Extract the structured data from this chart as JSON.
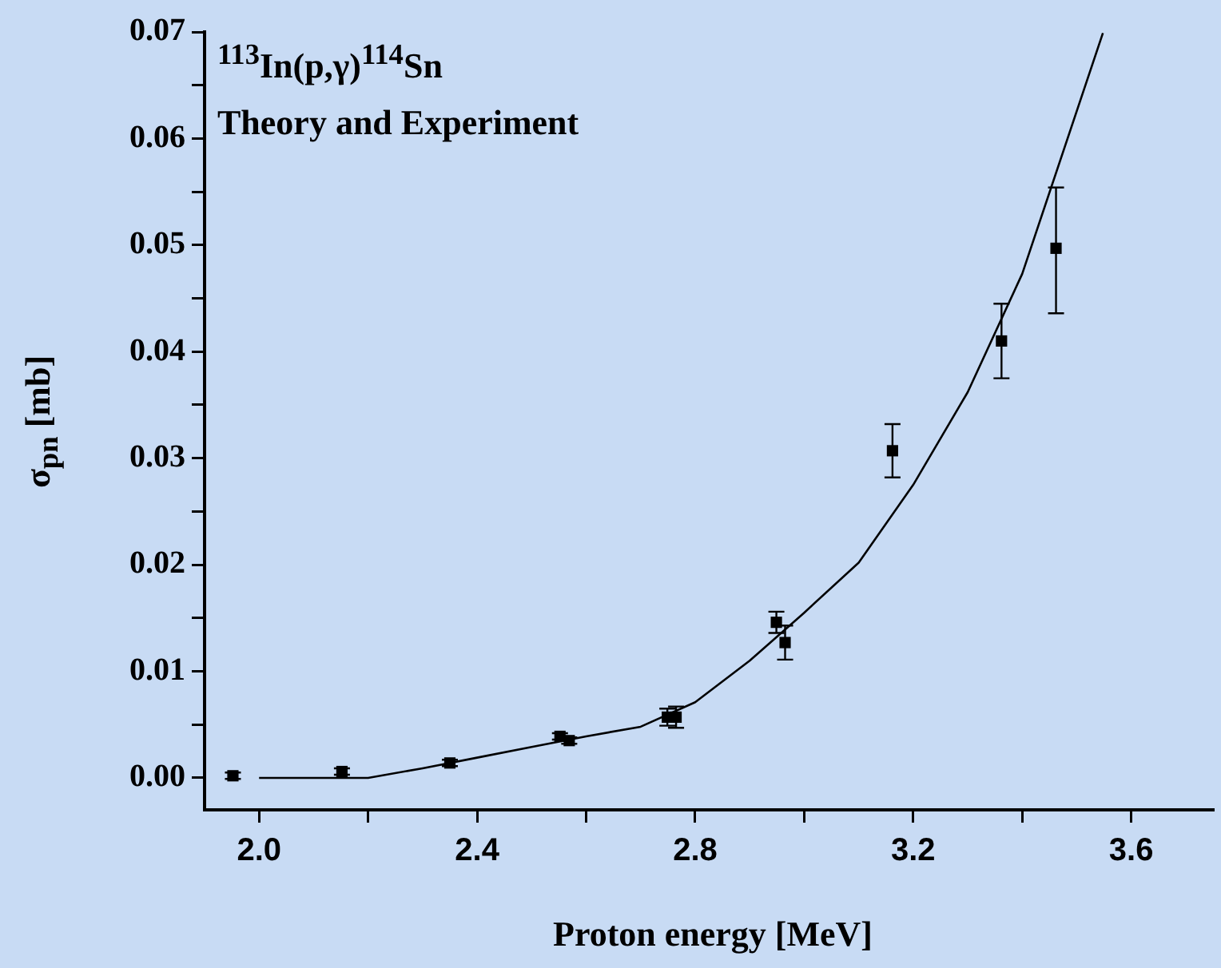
{
  "chart_data": {
    "type": "scatter",
    "xlabel": "Proton energy [MeV]",
    "ylabel": "σ$_{pn}$ [mb]",
    "annotations": [
      "$^{113}$In(p,γ)$^{114}$Sn",
      "Theory and Experiment"
    ],
    "xlim": [
      1.9,
      3.75
    ],
    "ylim": [
      -0.003,
      0.07
    ],
    "xticks": [
      {
        "value": 2.0,
        "label": "2.0"
      },
      {
        "value": 2.2,
        "label": null
      },
      {
        "value": 2.4,
        "label": "2.4"
      },
      {
        "value": 2.6,
        "label": null
      },
      {
        "value": 2.8,
        "label": "2.8"
      },
      {
        "value": 3.0,
        "label": null
      },
      {
        "value": 3.2,
        "label": "3.2"
      },
      {
        "value": 3.4,
        "label": null
      },
      {
        "value": 3.6,
        "label": "3.6"
      }
    ],
    "yticks": [
      {
        "value": 0,
        "label": "0.00"
      },
      {
        "value": 0.005,
        "label": null
      },
      {
        "value": 0.01,
        "label": "0.01"
      },
      {
        "value": 0.015,
        "label": null
      },
      {
        "value": 0.02,
        "label": "0.02"
      },
      {
        "value": 0.025,
        "label": null
      },
      {
        "value": 0.03,
        "label": "0.03"
      },
      {
        "value": 0.035,
        "label": null
      },
      {
        "value": 0.04,
        "label": "0.04"
      },
      {
        "value": 0.045,
        "label": null
      },
      {
        "value": 0.05,
        "label": "0.05"
      },
      {
        "value": 0.055,
        "label": null
      },
      {
        "value": 0.06,
        "label": "0.06"
      },
      {
        "value": 0.065,
        "label": null
      },
      {
        "value": 0.07,
        "label": "0.07"
      }
    ],
    "grid": false,
    "legend": false,
    "series": [
      {
        "type": "scatter",
        "color": "#000000",
        "marker": "square",
        "x": [
          1.952,
          2.152,
          2.35,
          2.552,
          2.569,
          2.749,
          2.765,
          2.949,
          2.965,
          3.162,
          3.362,
          3.462
        ],
        "values": [
          0.0002,
          0.0006,
          0.0014,
          0.0039,
          0.0035,
          0.0057,
          0.0057,
          0.0146,
          0.0127,
          0.0307,
          0.041,
          0.0497
        ],
        "errors": [
          0.0003,
          0.0003,
          0.0003,
          0.0003,
          0.0003,
          0.0008,
          0.001,
          0.001,
          0.0016,
          0.0025,
          0.0035,
          [
            0.0436,
            0.0554
          ]
        ]
      },
      {
        "type": "line",
        "color": "#000000",
        "line_style": "solid",
        "marker": "none",
        "x": [
          2.0,
          2.2,
          2.3,
          2.4,
          2.5,
          2.6,
          2.7,
          2.8,
          2.9,
          3.0,
          3.1,
          3.2,
          3.3,
          3.4,
          3.548
        ],
        "values": [
          0,
          0,
          0.0009,
          0.0019,
          0.0029,
          0.0039,
          0.0048,
          0.0071,
          0.011,
          0.0155,
          0.0202,
          0.0275,
          0.0362,
          0.0473,
          0.0699
        ]
      }
    ]
  }
}
